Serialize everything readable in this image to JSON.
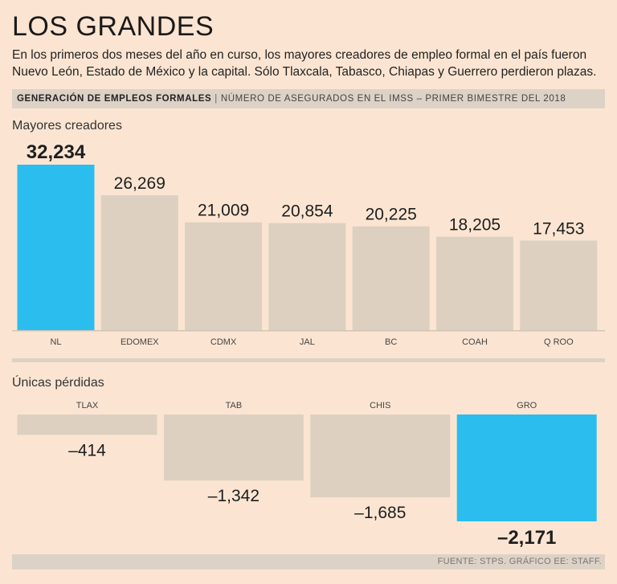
{
  "title": "LOS GRANDES",
  "subtitle": "En los primeros dos meses del año en curso, los mayores creadores de empleo formal en el país fueron Nuevo León, Estado de México y la capital. Sólo Tlaxcala, Tabasco, Chiapas y Guerrero perdieron plazas.",
  "header": {
    "left": "GENERACIÓN DE EMPLEOS FORMALES",
    "right": "NÚMERO DE ASEGURADOS EN EL IMSS – PRIMER BIMESTRE DEL 2018"
  },
  "colors": {
    "highlight": "#2bbdee",
    "bar": "#ddd0c1",
    "background": "#fbe5d2"
  },
  "chart_data": [
    {
      "type": "bar",
      "title": "Mayores creadores",
      "categories": [
        "NL",
        "EDOMEX",
        "CDMX",
        "JAL",
        "BC",
        "COAH",
        "Q ROO"
      ],
      "values": [
        32234,
        26269,
        21009,
        20854,
        20225,
        18205,
        17453
      ],
      "labels": [
        "32,234",
        "26,269",
        "21,009",
        "20,854",
        "20,225",
        "18,205",
        "17,453"
      ],
      "highlight": [
        "NL"
      ],
      "ylim": [
        0,
        32234
      ]
    },
    {
      "type": "bar",
      "title": "Únicas pérdidas",
      "categories": [
        "TLAX",
        "TAB",
        "CHIS",
        "GRO"
      ],
      "values": [
        -414,
        -1342,
        -1685,
        -2171
      ],
      "labels": [
        "–414",
        "–1,342",
        "–1,685",
        "–2,171"
      ],
      "highlight": [
        "GRO"
      ],
      "ylim": [
        -2171,
        0
      ]
    }
  ],
  "source": "FUENTE: STPS. GRÁFICO EE: STAFF."
}
